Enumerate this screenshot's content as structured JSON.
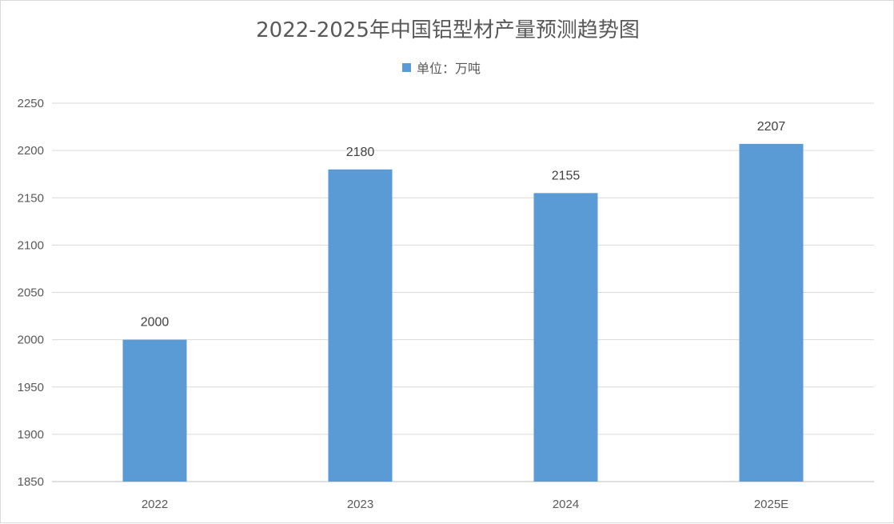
{
  "chart_data": {
    "type": "bar",
    "title": "2022-2025年中国铝型材产量预测趋势图",
    "legend": {
      "label": "单位：万吨",
      "placement": "top"
    },
    "categories": [
      "2022",
      "2023",
      "2024",
      "2025E"
    ],
    "series": [
      {
        "name": "单位：万吨",
        "values": [
          2000,
          2180,
          2155,
          2207
        ],
        "color": "#5b9bd5"
      }
    ],
    "data_labels": [
      "2000",
      "2180",
      "2155",
      "2207"
    ],
    "ylim": [
      1850,
      2250
    ],
    "yticks": [
      1850,
      1900,
      1950,
      2000,
      2050,
      2100,
      2150,
      2200,
      2250
    ],
    "grid": true,
    "xlabel": "",
    "ylabel": ""
  }
}
